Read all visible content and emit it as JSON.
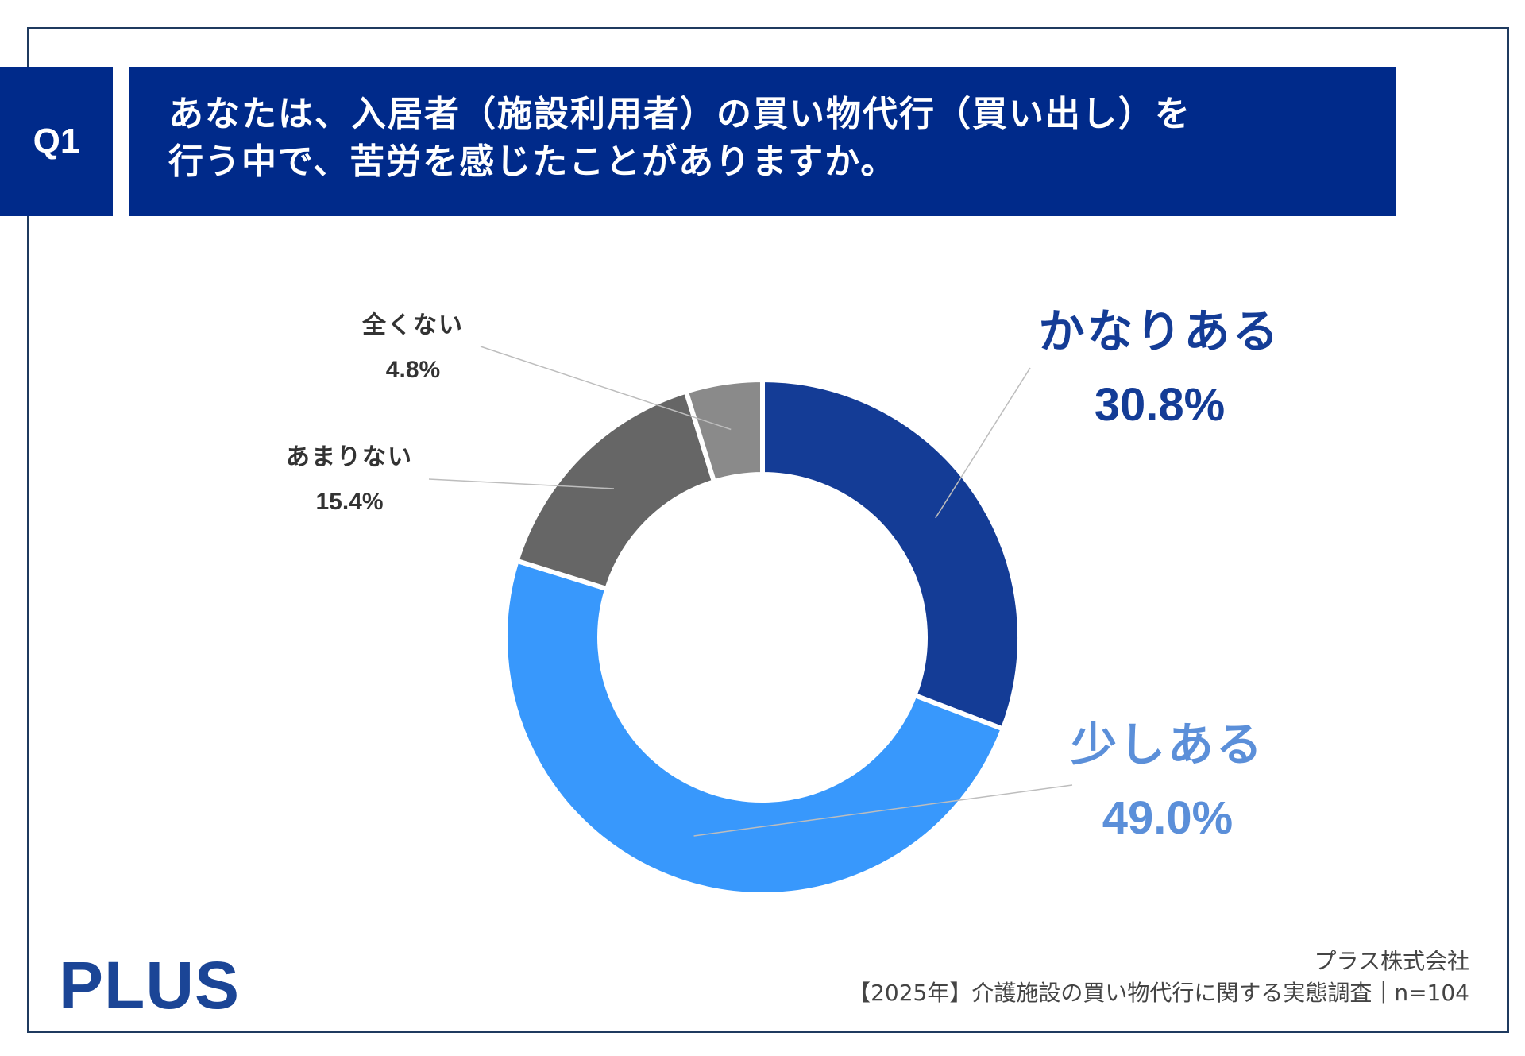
{
  "header": {
    "badge": "Q1",
    "question_line1": "あなたは、入居者（施設利用者）の買い物代行（買い出し）を",
    "question_line2": "行う中で、苦労を感じたことがありますか。"
  },
  "chart_data": {
    "type": "pie",
    "donut": true,
    "categories": [
      "かなりある",
      "少しある",
      "あまりない",
      "全くない"
    ],
    "values": [
      30.8,
      49.0,
      15.4,
      4.8
    ],
    "labels": [
      "30.8%",
      "49.0%",
      "15.4%",
      "4.8%"
    ],
    "colors": [
      "#143c96",
      "#3898fc",
      "#666666",
      "#8a8a8a"
    ],
    "label_colors": [
      "#143c96",
      "#5b8fd9",
      "#333333",
      "#333333"
    ],
    "start_angle": "12 o'clock",
    "direction": "clockwise"
  },
  "footer": {
    "company": "プラス株式会社",
    "survey": "【2025年】介護施設の買い物代行に関する実態調査｜n=104"
  },
  "logo": "PLUS"
}
